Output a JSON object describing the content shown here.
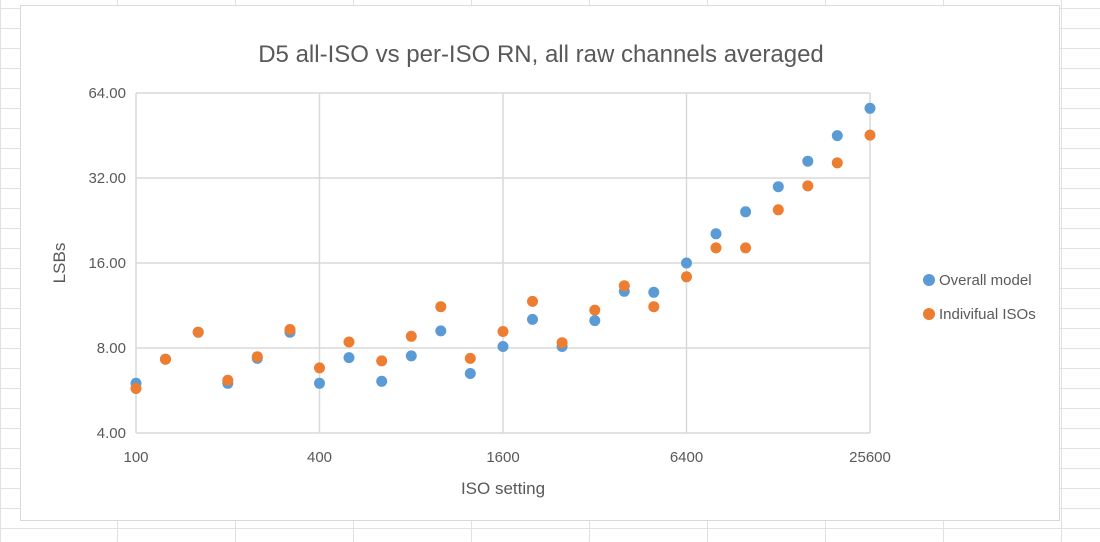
{
  "chart_data": {
    "type": "scatter",
    "title": "D5 all-ISO vs per-ISO RN, all raw channels averaged",
    "xlabel": "ISO setting",
    "ylabel": "LSBs",
    "x_scale": "log2",
    "y_scale": "log2",
    "xlim": [
      100,
      25600
    ],
    "ylim": [
      4,
      64
    ],
    "x_ticks": [
      100,
      400,
      1600,
      6400,
      25600
    ],
    "x_tick_labels": [
      "100",
      "400",
      "1600",
      "6400",
      "25600"
    ],
    "y_ticks": [
      4,
      8,
      16,
      32,
      64
    ],
    "y_tick_labels": [
      "4.00",
      "8.00",
      "16.00",
      "32.00",
      "64.00"
    ],
    "grid": true,
    "legend_position": "right",
    "series": [
      {
        "name": "Overall model",
        "color": "#5b9bd5",
        "points": [
          [
            100,
            6.0
          ],
          [
            125,
            7.3
          ],
          [
            160,
            9.1
          ],
          [
            200,
            6.0
          ],
          [
            250,
            7.35
          ],
          [
            320,
            9.1
          ],
          [
            400,
            6.0
          ],
          [
            500,
            7.4
          ],
          [
            640,
            6.1
          ],
          [
            800,
            7.5
          ],
          [
            1000,
            9.2
          ],
          [
            1250,
            6.5
          ],
          [
            1600,
            8.1
          ],
          [
            2000,
            10.1
          ],
          [
            2500,
            8.1
          ],
          [
            3200,
            10.0
          ],
          [
            4000,
            12.7
          ],
          [
            5000,
            12.6
          ],
          [
            6400,
            16.0
          ],
          [
            8000,
            20.3
          ],
          [
            10000,
            24.3
          ],
          [
            12800,
            29.8
          ],
          [
            16000,
            36.7
          ],
          [
            20000,
            45.2
          ],
          [
            25600,
            56.5
          ]
        ]
      },
      {
        "name": "Indivifual ISOs",
        "color": "#ed7d31",
        "points": [
          [
            100,
            5.75
          ],
          [
            125,
            7.3
          ],
          [
            160,
            9.1
          ],
          [
            200,
            6.15
          ],
          [
            250,
            7.45
          ],
          [
            320,
            9.3
          ],
          [
            400,
            6.8
          ],
          [
            500,
            8.4
          ],
          [
            640,
            7.2
          ],
          [
            800,
            8.8
          ],
          [
            1000,
            11.2
          ],
          [
            1250,
            7.35
          ],
          [
            1600,
            9.15
          ],
          [
            2000,
            11.7
          ],
          [
            2500,
            8.35
          ],
          [
            3200,
            10.9
          ],
          [
            4000,
            13.3
          ],
          [
            5000,
            11.2
          ],
          [
            6400,
            14.3
          ],
          [
            8000,
            18.1
          ],
          [
            10000,
            18.1
          ],
          [
            12800,
            24.7
          ],
          [
            16000,
            30.0
          ],
          [
            20000,
            36.2
          ],
          [
            25600,
            45.4
          ]
        ]
      }
    ]
  }
}
